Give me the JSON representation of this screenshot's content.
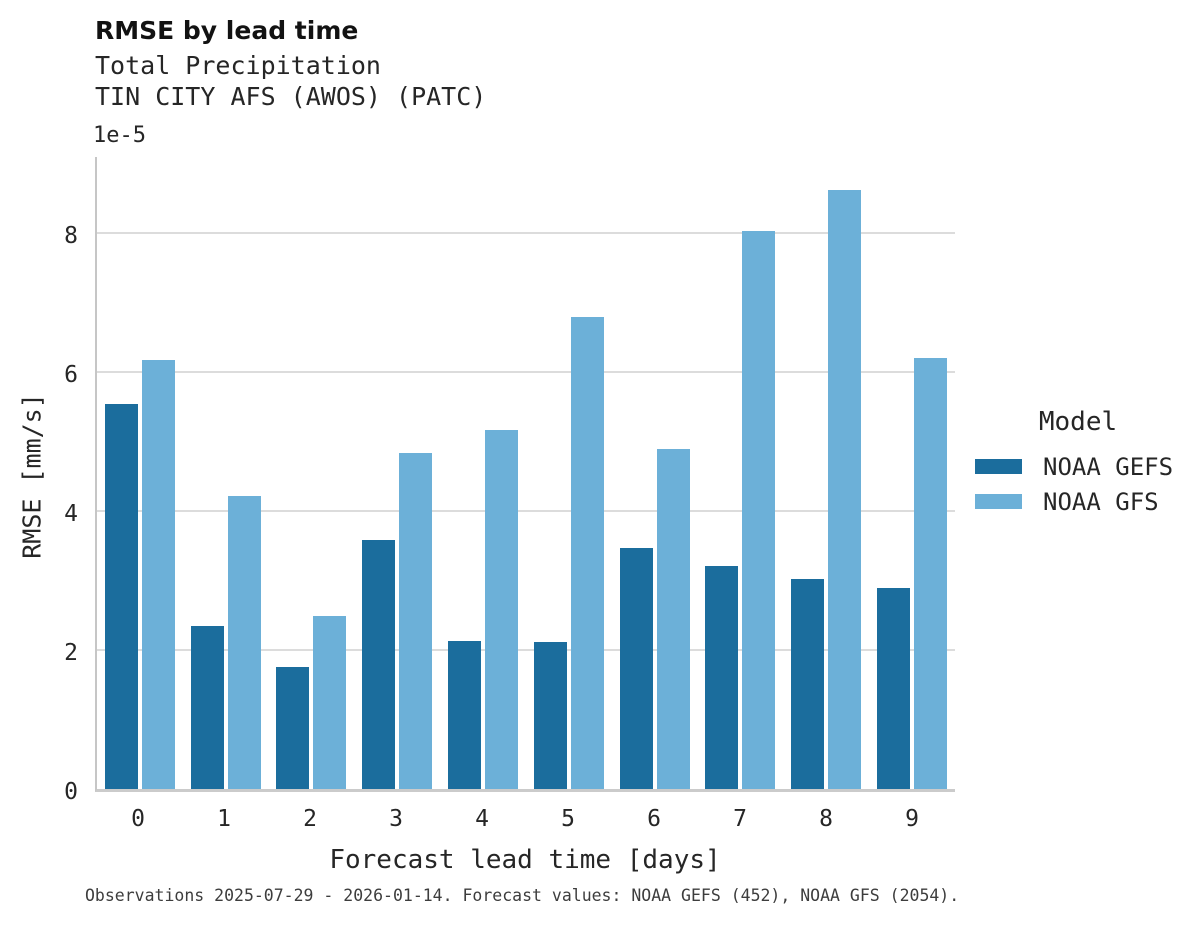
{
  "chart_data": {
    "type": "bar",
    "title": "RMSE by lead time",
    "subtitle_lines": [
      "Total Precipitation",
      "TIN CITY AFS (AWOS) (PATC)"
    ],
    "xlabel": "Forecast lead time [days]",
    "ylabel": "RMSE [mm/s]",
    "y_offset_label": "1e-5",
    "categories": [
      "0",
      "1",
      "2",
      "3",
      "4",
      "5",
      "6",
      "7",
      "8",
      "9"
    ],
    "series": [
      {
        "name": "NOAA GEFS",
        "color": "#1b6d9d",
        "values": [
          5.55,
          2.35,
          1.76,
          3.58,
          2.13,
          2.11,
          3.47,
          3.21,
          3.03,
          2.89
        ]
      },
      {
        "name": "NOAA GFS",
        "color": "#6cb0d8",
        "values": [
          6.18,
          4.22,
          2.49,
          4.84,
          5.17,
          6.79,
          4.9,
          8.04,
          8.62,
          6.2
        ]
      }
    ],
    "ylim": [
      0,
      9.1
    ],
    "yticks": [
      0,
      2,
      4,
      6,
      8
    ],
    "grid": true,
    "grid_color": "#dcdcdc",
    "spine_color": "#c6c6c6",
    "legend_title": "Model",
    "legend_position": "right",
    "footnote": "Observations 2025-07-29 - 2026-01-14. Forecast values: NOAA GEFS (452), NOAA GFS (2054)."
  }
}
